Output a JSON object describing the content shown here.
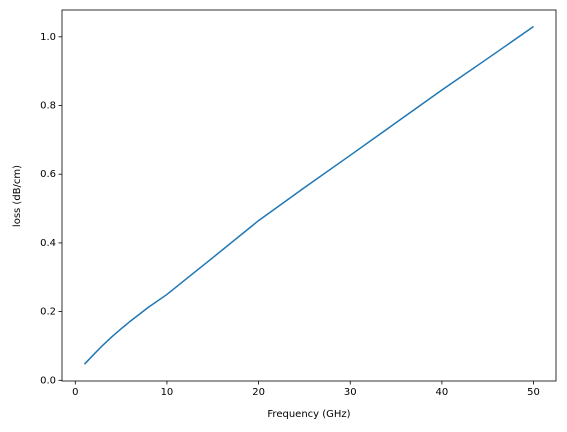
{
  "chart_data": {
    "type": "line",
    "x_label": "Frequency (GHz)",
    "y_label": "loss (dB/cm)",
    "x": [
      1,
      2,
      3,
      4,
      5,
      6,
      8,
      10,
      12,
      15,
      20,
      25,
      30,
      35,
      40,
      45,
      50
    ],
    "values": [
      0.047,
      0.075,
      0.102,
      0.127,
      0.15,
      0.172,
      0.213,
      0.25,
      0.293,
      0.357,
      0.465,
      0.561,
      0.655,
      0.75,
      0.845,
      0.937,
      1.03
    ],
    "color": "#1f77b4",
    "xlim": [
      -1.45,
      52.45
    ],
    "ylim": [
      -0.002,
      1.078
    ],
    "xticks": [
      0,
      10,
      20,
      30,
      40,
      50
    ],
    "yticks": [
      {
        "value": 0,
        "label": "0.0"
      },
      0.2,
      0.4,
      0.6,
      0.8,
      {
        "value": 1,
        "label": "1.0"
      }
    ],
    "grid": false
  }
}
